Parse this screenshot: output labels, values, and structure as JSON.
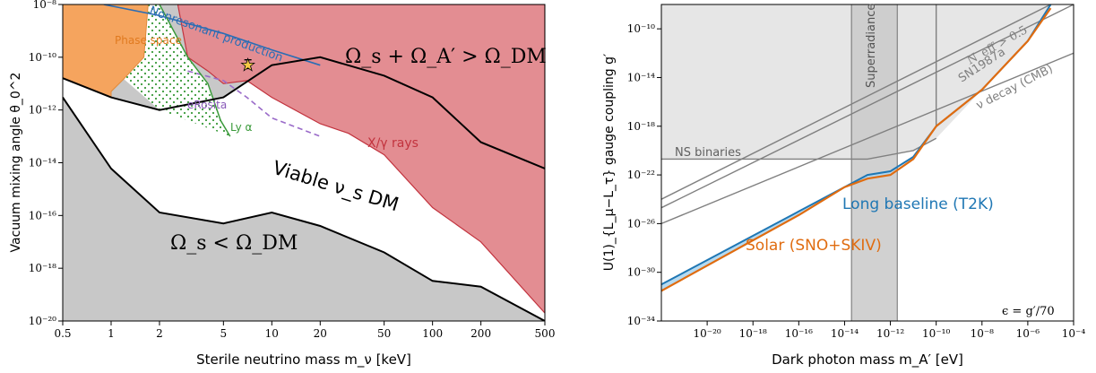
{
  "chart_data": [
    {
      "type": "area",
      "xscale": "log",
      "yscale": "log",
      "xlim": [
        0.5,
        500
      ],
      "ylim": [
        1e-20,
        1e-08
      ],
      "xlabel": "Sterile neutrino mass m_ν [keV]",
      "ylabel": "Vacuum mixing angle θ_0^2",
      "xticks": [
        0.5,
        1,
        2,
        5,
        10,
        20,
        50,
        100,
        200,
        500
      ],
      "xtick_labels": [
        "0.5",
        "1",
        "2",
        "5",
        "10",
        "20",
        "50",
        "100",
        "200",
        "500"
      ],
      "yticks": [
        1e-20,
        1e-18,
        1e-16,
        1e-14,
        1e-12,
        1e-10,
        1e-08
      ],
      "ytick_labels": [
        "10⁻²⁰",
        "10⁻¹⁸",
        "10⁻¹⁶",
        "10⁻¹⁴",
        "10⁻¹²",
        "10⁻¹⁰",
        "10⁻⁸"
      ],
      "colors": {
        "excluded": "#c8c8c8",
        "phase_space": "#f5a45e",
        "xray": "#e38d92",
        "xray_edge": "#c2333e",
        "lya": "#3a9a3a",
        "erosita": "#9a6bc9",
        "nonres": "#2a6db5"
      },
      "regions": [
        {
          "name": "Ω_s + Ω_A' > Ω_DM",
          "upper_boundary": [
            [
              0.5,
              1.6e-11
            ],
            [
              1,
              3e-12
            ],
            [
              2,
              1e-12
            ],
            [
              5,
              3e-12
            ],
            [
              10,
              5e-11
            ],
            [
              20,
              1e-10
            ],
            [
              50,
              2e-11
            ],
            [
              100,
              3e-12
            ],
            [
              200,
              6e-14
            ],
            [
              500,
              6e-15
            ]
          ]
        },
        {
          "name": "Ω_s < Ω_DM",
          "lower_boundary": [
            [
              0.5,
              3e-12
            ],
            [
              1,
              6e-15
            ],
            [
              2,
              1.3e-16
            ],
            [
              5,
              5e-17
            ],
            [
              10,
              1.3e-16
            ],
            [
              20,
              4e-17
            ],
            [
              50,
              4e-18
            ],
            [
              100,
              3.3e-19
            ],
            [
              200,
              2e-19
            ],
            [
              500,
              1e-20
            ]
          ]
        },
        {
          "name": "Phase space",
          "x_max": 1.7
        },
        {
          "name": "X/γ rays",
          "lower_boundary": [
            [
              2.6,
              1e-08
            ],
            [
              3,
              1e-10
            ],
            [
              4,
              3e-11
            ],
            [
              5,
              1e-11
            ],
            [
              7,
              1.3e-11
            ],
            [
              10,
              3e-12
            ],
            [
              20,
              3e-13
            ],
            [
              30,
              1.3e-13
            ],
            [
              50,
              2e-14
            ],
            [
              100,
              2e-16
            ],
            [
              200,
              1e-17
            ],
            [
              500,
              2e-20
            ]
          ]
        }
      ],
      "curves": [
        {
          "name": "Nonresonant production",
          "points": [
            [
              0.9,
              1e-08
            ],
            [
              2,
              3.8e-09
            ],
            [
              5,
              8e-10
            ],
            [
              10,
              1.9e-10
            ],
            [
              20,
              5e-11
            ]
          ]
        },
        {
          "name": "eRosita",
          "points": [
            [
              3,
              3e-11
            ],
            [
              5,
              1.3e-11
            ],
            [
              7,
              3e-12
            ],
            [
              10,
              5e-13
            ],
            [
              20,
              1e-13
            ]
          ]
        },
        {
          "name": "Ly α",
          "points": [
            [
              2,
              1e-08
            ],
            [
              3,
              1e-10
            ],
            [
              4,
              1e-11
            ],
            [
              4.8,
              4e-13
            ],
            [
              5.5,
              1e-13
            ]
          ]
        }
      ],
      "marker": {
        "x": 7.1,
        "y": 5e-11,
        "yerr_low": 3.7e-11,
        "yerr_high": 8e-11
      },
      "annotations": [
        "Ω_s + Ω_A′ > Ω_DM",
        "Ω_s < Ω_DM",
        "Viable ν_s DM",
        "Phase space",
        "Nonresonant production",
        "eRosita",
        "Ly α",
        "X/γ rays"
      ]
    },
    {
      "type": "line",
      "xscale": "log",
      "yscale": "log",
      "xlim": [
        1e-22,
        0.0001
      ],
      "ylim": [
        1e-34,
        1e-08
      ],
      "xlabel": "Dark photon mass m_A′ [eV]",
      "ylabel": "U(1)_{L_μ−L_τ} gauge coupling g′",
      "xticks": [
        1e-20,
        1e-18,
        1e-16,
        1e-14,
        1e-12,
        1e-10,
        1e-08,
        1e-06,
        0.0001
      ],
      "xtick_labels": [
        "10⁻²⁰",
        "10⁻¹⁸",
        "10⁻¹⁶",
        "10⁻¹⁴",
        "10⁻¹²",
        "10⁻¹⁰",
        "10⁻⁸",
        "10⁻⁶",
        "10⁻⁴"
      ],
      "yticks": [
        1e-34,
        1e-30,
        1e-26,
        1e-22,
        1e-18,
        1e-14,
        1e-10
      ],
      "ytick_labels": [
        "10⁻³⁴",
        "10⁻³⁰",
        "10⁻²⁶",
        "10⁻²²",
        "10⁻¹⁸",
        "10⁻¹⁴",
        "10⁻¹⁰"
      ],
      "colors": {
        "t2k": "#1f77b4",
        "t2k_fill": "#add6f0",
        "solar": "#e06c10",
        "bounds": "#808080",
        "excluded": "#e6e6e6",
        "superradiance": "#c9c9c9"
      },
      "series": [
        {
          "name": "Long baseline (T2K)",
          "points": [
            [
              1e-22,
              1e-31
            ],
            [
              1e-16,
              1e-25
            ],
            [
              1e-13,
              1e-22
            ],
            [
              1e-12,
              2e-22
            ],
            [
              1e-11,
              3e-21
            ],
            [
              1e-10,
              1e-18
            ],
            [
              1e-08,
              1e-15
            ],
            [
              1e-06,
              1e-11
            ],
            [
              1e-05,
              1e-08
            ]
          ]
        },
        {
          "name": "Solar (SNO+SKIV)",
          "points": [
            [
              1e-22,
              3e-32
            ],
            [
              1e-16,
              5e-26
            ],
            [
              1e-14,
              1e-23
            ],
            [
              1e-13,
              5e-23
            ],
            [
              1e-12,
              1e-22
            ],
            [
              1e-11,
              2e-21
            ],
            [
              1e-10,
              1e-18
            ],
            [
              1e-08,
              1e-15
            ],
            [
              1e-06,
              1e-11
            ],
            [
              1e-05,
              5e-09
            ]
          ]
        }
      ],
      "bounds": [
        {
          "name": "NS binaries",
          "points": [
            [
              1e-22,
              2e-21
            ],
            [
              1e-13,
              2e-21
            ],
            [
              1e-11,
              1e-20
            ],
            [
              1e-10,
              1e-19
            ]
          ]
        },
        {
          "name": "SN1987a",
          "points": [
            [
              1e-22,
              2e-25
            ],
            [
              0.0001,
              1e-08
            ]
          ]
        },
        {
          "name": "N_eff > 0.5",
          "points": [
            [
              1e-22,
              1e-24
            ],
            [
              1e-05,
              1e-08
            ]
          ]
        },
        {
          "name": "ν decay (CMB)",
          "points": [
            [
              1e-22,
              1e-26
            ],
            [
              0.0001,
              1e-12
            ]
          ]
        }
      ],
      "superradiance_band": [
        2e-14,
        2e-12
      ],
      "annotations": [
        "Superradiance",
        "N_eff > 0.5",
        "SN1987a",
        "ν decay (CMB)",
        "NS binaries",
        "Long baseline (T2K)",
        "Solar (SNO+SKIV)",
        "ϵ = g′/70"
      ]
    }
  ]
}
